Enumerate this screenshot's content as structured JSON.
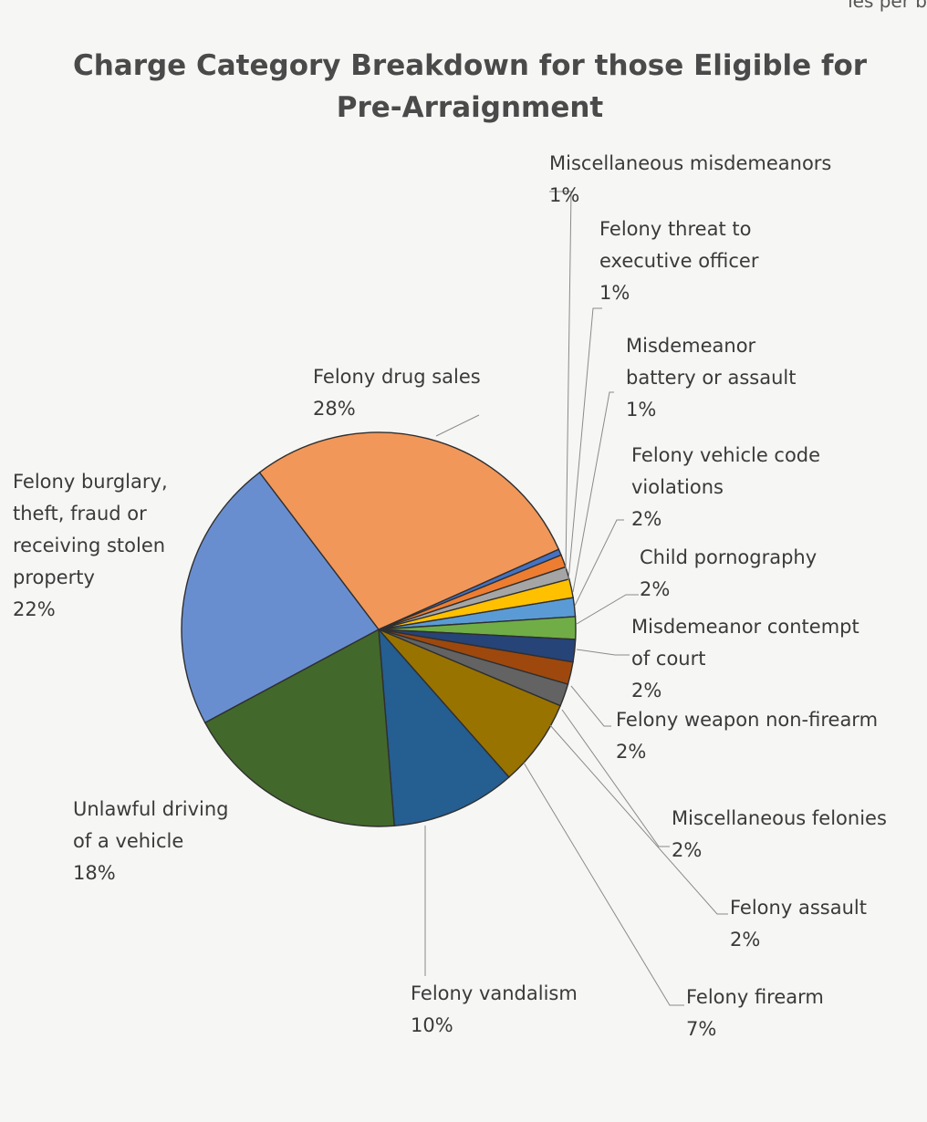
{
  "header": {
    "snippet": "ies per b"
  },
  "chart_data": {
    "type": "pie",
    "title": "Charge Category Breakdown for those Eligible for Pre-Arraignment",
    "title_lines": [
      "Charge Category Breakdown for those Eligible for",
      "Pre-Arraignment"
    ],
    "start_angle_deg": -24,
    "direction": "clockwise",
    "slices": [
      {
        "name": "Miscellaneous misdemeanors",
        "label_lines": [
          "Miscellaneous misdemeanors"
        ],
        "pct_label": "1%",
        "value": 0.5,
        "color": "#4472C4"
      },
      {
        "name": "Felony threat to executive officer",
        "label_lines": [
          "Felony threat to",
          "executive officer"
        ],
        "pct_label": "1%",
        "value": 1,
        "color": "#ED7D31"
      },
      {
        "name": "Misdemeanor battery or assault",
        "label_lines": [
          "Misdemeanor",
          "battery or assault"
        ],
        "pct_label": "1%",
        "value": 1,
        "color": "#A5A5A5"
      },
      {
        "name": "Felony vehicle code violations",
        "label_lines": [
          "Felony vehicle code",
          "violations"
        ],
        "pct_label": "2%",
        "value": 1.5,
        "color": "#FFC000"
      },
      {
        "name": "Child pornography",
        "label_lines": [
          "Child pornography"
        ],
        "pct_label": "2%",
        "value": 1.5,
        "color": "#5B9BD5"
      },
      {
        "name": "Misdemeanor contempt of court",
        "label_lines": [
          "Misdemeanor contempt",
          "of court"
        ],
        "pct_label": "2%",
        "value": 1.8,
        "color": "#70AD47"
      },
      {
        "name": "Felony weapon non-firearm",
        "label_lines": [
          "Felony weapon non-firearm"
        ],
        "pct_label": "2%",
        "value": 1.8,
        "color": "#264478"
      },
      {
        "name": "Miscellaneous felonies",
        "label_lines": [
          "Miscellaneous felonies"
        ],
        "pct_label": "2%",
        "value": 1.8,
        "color": "#9E480E"
      },
      {
        "name": "Felony assault",
        "label_lines": [
          "Felony assault"
        ],
        "pct_label": "2%",
        "value": 1.8,
        "color": "#636363"
      },
      {
        "name": "Felony firearm",
        "label_lines": [
          "Felony firearm"
        ],
        "pct_label": "7%",
        "value": 7,
        "color": "#997300"
      },
      {
        "name": "Felony vandalism",
        "label_lines": [
          "Felony vandalism"
        ],
        "pct_label": "10%",
        "value": 10,
        "color": "#255E91"
      },
      {
        "name": "Unlawful driving of a vehicle",
        "label_lines": [
          "Unlawful driving",
          "of a vehicle"
        ],
        "pct_label": "18%",
        "value": 18,
        "color": "#43682B"
      },
      {
        "name": "Felony burglary, theft, fraud or receiving stolen property",
        "label_lines": [
          "Felony burglary,",
          "theft, fraud or",
          "receiving stolen",
          "property"
        ],
        "pct_label": "22%",
        "value": 22,
        "color": "#698ED0"
      },
      {
        "name": "Felony drug sales",
        "label_lines": [
          "Felony drug sales"
        ],
        "pct_label": "28%",
        "value": 28,
        "color": "#F1975A"
      }
    ]
  }
}
